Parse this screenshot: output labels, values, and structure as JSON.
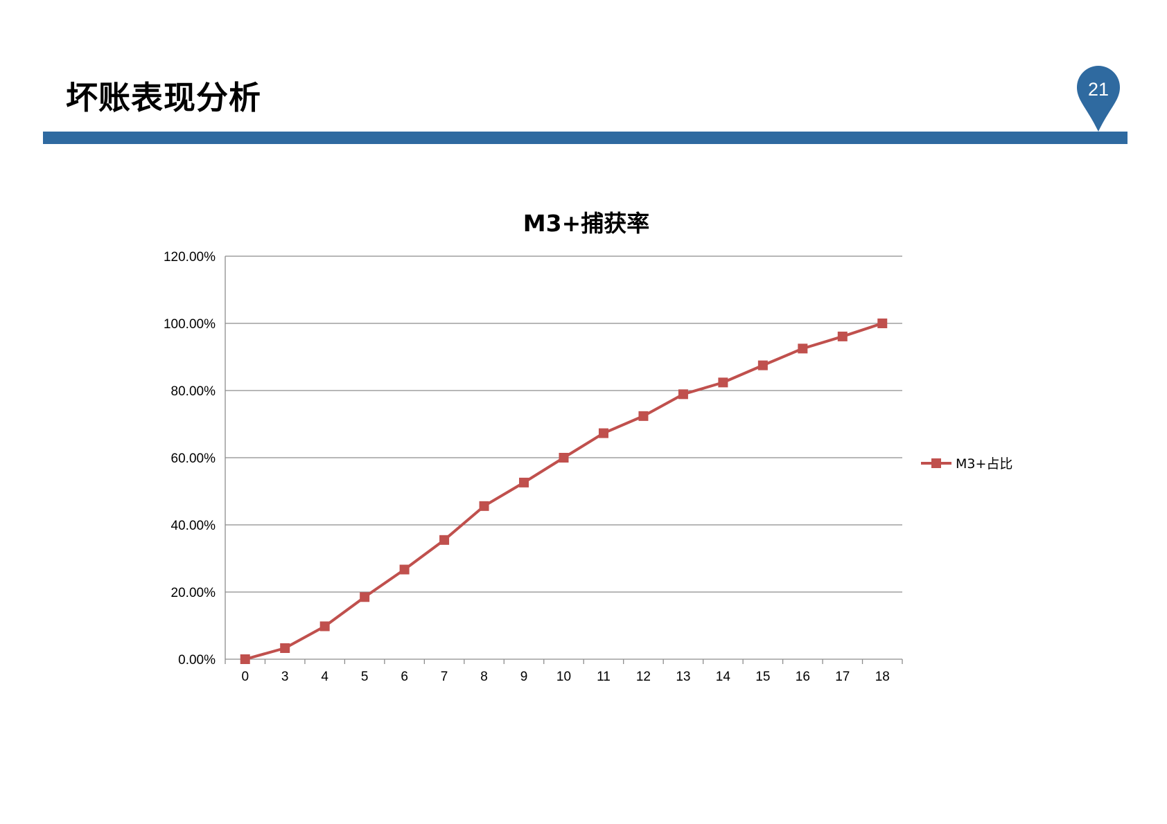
{
  "slide": {
    "title": "坏账表现分析",
    "page_number": "21"
  },
  "colors": {
    "accent": "#2f6aa0",
    "series": "#c0504d",
    "grid": "#8c8c8c"
  },
  "chart_data": {
    "type": "line",
    "title": "M3+捕获率",
    "xlabel": "",
    "ylabel": "",
    "categories": [
      "0",
      "3",
      "4",
      "5",
      "6",
      "7",
      "8",
      "9",
      "10",
      "11",
      "12",
      "13",
      "14",
      "15",
      "16",
      "17",
      "18"
    ],
    "ylim": [
      0,
      120
    ],
    "yticks": [
      "0.00%",
      "20.00%",
      "40.00%",
      "60.00%",
      "80.00%",
      "100.00%",
      "120.00%"
    ],
    "grid": true,
    "legend_position": "right",
    "series": [
      {
        "name": "M3+占比",
        "marker": "square",
        "values": [
          0.0,
          3.3,
          9.8,
          18.5,
          26.7,
          35.5,
          45.6,
          52.6,
          60.0,
          67.3,
          72.4,
          78.9,
          82.4,
          87.5,
          92.5,
          96.1,
          100.0
        ]
      }
    ]
  }
}
